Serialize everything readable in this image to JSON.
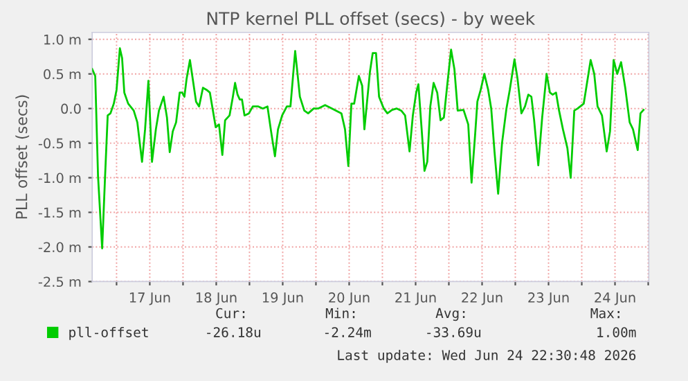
{
  "chart_data": {
    "type": "line",
    "title": "NTP kernel PLL offset (secs) - by week",
    "ylabel": "PLL offset (secs)",
    "x": [
      "2026-06-16T15:12",
      "2026-06-16T16:18",
      "2026-06-16T17:18",
      "2026-06-16T18:48",
      "2026-06-16T19:48",
      "2026-06-16T20:48",
      "2026-06-16T21:48",
      "2026-06-16T23:00",
      "2026-06-17T00:00",
      "2026-06-17T01:12",
      "2026-06-17T02:00",
      "2026-06-17T02:48",
      "2026-06-17T04:12",
      "2026-06-17T06:12",
      "2026-06-17T07:30",
      "2026-06-17T09:12",
      "2026-06-17T10:18",
      "2026-06-17T11:30",
      "2026-06-17T12:48",
      "2026-06-17T14:12",
      "2026-06-17T15:18",
      "2026-06-17T17:00",
      "2026-06-17T18:12",
      "2026-06-17T19:12",
      "2026-06-17T20:18",
      "2026-06-17T21:30",
      "2026-06-17T22:48",
      "2026-06-17T23:42",
      "2026-06-18T00:30",
      "2026-06-18T01:18",
      "2026-06-18T02:30",
      "2026-06-18T03:30",
      "2026-06-18T04:42",
      "2026-06-18T05:48",
      "2026-06-18T07:12",
      "2026-06-18T08:30",
      "2026-06-18T09:42",
      "2026-06-18T10:48",
      "2026-06-18T11:48",
      "2026-06-18T13:00",
      "2026-06-18T14:12",
      "2026-06-18T15:12",
      "2026-06-18T16:48",
      "2026-06-18T18:00",
      "2026-06-18T18:48",
      "2026-06-18T19:42",
      "2026-06-18T20:30",
      "2026-06-18T21:18",
      "2026-06-18T22:12",
      "2026-06-18T23:48",
      "2026-06-19T01:12",
      "2026-06-19T03:12",
      "2026-06-19T04:48",
      "2026-06-19T06:30",
      "2026-06-19T07:48",
      "2026-06-19T09:12",
      "2026-06-19T10:18",
      "2026-06-19T11:48",
      "2026-06-19T13:30",
      "2026-06-19T14:48",
      "2026-06-19T16:30",
      "2026-06-19T18:12",
      "2026-06-19T19:48",
      "2026-06-19T21:12",
      "2026-06-19T23:12",
      "2026-06-20T00:48",
      "2026-06-20T03:18",
      "2026-06-20T05:48",
      "2026-06-20T09:12",
      "2026-06-20T10:30",
      "2026-06-20T11:42",
      "2026-06-20T12:48",
      "2026-06-20T13:48",
      "2026-06-20T15:30",
      "2026-06-20T16:42",
      "2026-06-20T17:30",
      "2026-06-20T18:18",
      "2026-06-20T19:30",
      "2026-06-20T20:30",
      "2026-06-20T21:42",
      "2026-06-20T22:48",
      "2026-06-21T00:30",
      "2026-06-21T01:48",
      "2026-06-21T03:30",
      "2026-06-21T05:12",
      "2026-06-21T06:48",
      "2026-06-21T08:12",
      "2026-06-21T09:48",
      "2026-06-21T11:00",
      "2026-06-21T12:12",
      "2026-06-21T13:00",
      "2026-06-21T14:18",
      "2026-06-21T15:12",
      "2026-06-21T16:12",
      "2026-06-21T17:18",
      "2026-06-21T18:30",
      "2026-06-21T19:48",
      "2026-06-21T21:00",
      "2026-06-21T22:12",
      "2026-06-21T23:30",
      "2026-06-22T00:48",
      "2026-06-22T02:00",
      "2026-06-22T03:12",
      "2026-06-22T05:18",
      "2026-06-22T07:00",
      "2026-06-22T08:12",
      "2026-06-22T09:30",
      "2026-06-22T10:18",
      "2026-06-22T11:30",
      "2026-06-22T12:48",
      "2026-06-22T14:12",
      "2026-06-22T15:18",
      "2026-06-22T16:30",
      "2026-06-22T17:48",
      "2026-06-22T19:12",
      "2026-06-22T20:48",
      "2026-06-22T22:00",
      "2026-06-22T23:42",
      "2026-06-23T00:48",
      "2026-06-23T02:12",
      "2026-06-23T03:30",
      "2026-06-23T04:42",
      "2026-06-23T05:48",
      "2026-06-23T06:48",
      "2026-06-23T08:18",
      "2026-06-23T09:42",
      "2026-06-23T11:18",
      "2026-06-23T12:30",
      "2026-06-23T13:30",
      "2026-06-23T14:42",
      "2026-06-23T15:48",
      "2026-06-23T17:12",
      "2026-06-23T18:48",
      "2026-06-23T20:00",
      "2026-06-23T21:18",
      "2026-06-23T22:30",
      "2026-06-24T00:42",
      "2026-06-24T01:30",
      "2026-06-24T03:12",
      "2026-06-24T04:30",
      "2026-06-24T05:42",
      "2026-06-24T07:18",
      "2026-06-24T09:00",
      "2026-06-24T10:12",
      "2026-06-24T11:30",
      "2026-06-24T12:48",
      "2026-06-24T14:12",
      "2026-06-24T15:42",
      "2026-06-24T17:18",
      "2026-06-24T18:30",
      "2026-06-24T20:12",
      "2026-06-24T21:12",
      "2026-06-24T22:18"
    ],
    "series": [
      {
        "name": "pll-offset",
        "color": "#00cc00",
        "values": [
          0.57,
          0.47,
          -0.97,
          -2.02,
          -1.03,
          -0.1,
          -0.07,
          0.07,
          0.27,
          0.87,
          0.73,
          0.23,
          0.07,
          -0.03,
          -0.2,
          -0.77,
          -0.3,
          0.4,
          -0.77,
          -0.3,
          -0.03,
          0.17,
          -0.13,
          -0.63,
          -0.33,
          -0.2,
          0.23,
          0.23,
          0.17,
          0.43,
          0.7,
          0.43,
          0.1,
          0.03,
          0.3,
          0.27,
          0.23,
          -0.03,
          -0.27,
          -0.23,
          -0.67,
          -0.17,
          -0.1,
          0.17,
          0.37,
          0.2,
          0.13,
          0.13,
          -0.1,
          -0.07,
          0.03,
          0.03,
          0,
          0.03,
          -0.33,
          -0.69,
          -0.3,
          -0.1,
          0.03,
          0.03,
          0.83,
          0.17,
          -0.03,
          -0.07,
          0,
          0,
          0.05,
          0,
          -0.07,
          -0.3,
          -0.83,
          0.07,
          0.07,
          0.47,
          0.33,
          -0.3,
          0.03,
          0.53,
          0.8,
          0.8,
          0.17,
          0,
          -0.07,
          -0.02,
          0,
          -0.03,
          -0.1,
          -0.62,
          -0.1,
          0.23,
          0.35,
          -0.37,
          -0.9,
          -0.77,
          0.03,
          0.37,
          0.23,
          -0.17,
          -0.13,
          0.37,
          0.85,
          0.57,
          -0.03,
          -0.02,
          -0.23,
          -1.07,
          -0.37,
          0.1,
          0.27,
          0.5,
          0.27,
          0,
          -0.63,
          -1.23,
          -0.5,
          0,
          0.27,
          0.71,
          0.43,
          -0.07,
          0.03,
          0.2,
          0.17,
          -0.17,
          -0.82,
          -0.13,
          0.5,
          0.23,
          0.2,
          0.23,
          -0.03,
          -0.3,
          -0.57,
          -1.0,
          -0.03,
          0,
          0.07,
          0.27,
          0.7,
          0.5,
          0.03,
          -0.1,
          -0.62,
          -0.33,
          0.7,
          0.5,
          0.67,
          0.3,
          -0.2,
          -0.3,
          -0.6,
          -0.07,
          -0.02
        ]
      }
    ],
    "xlim": [
      "2026-06-16T15:12",
      "2026-06-25T00:12"
    ],
    "xticks": [
      {
        "value": "2026-06-17T00:00",
        "label": null
      },
      {
        "value": "2026-06-17T12:00",
        "label": "17 Jun"
      },
      {
        "value": "2026-06-18T00:00",
        "label": null
      },
      {
        "value": "2026-06-18T12:00",
        "label": "18 Jun"
      },
      {
        "value": "2026-06-19T00:00",
        "label": null
      },
      {
        "value": "2026-06-19T12:00",
        "label": "19 Jun"
      },
      {
        "value": "2026-06-20T00:00",
        "label": null
      },
      {
        "value": "2026-06-20T12:00",
        "label": "20 Jun"
      },
      {
        "value": "2026-06-21T00:00",
        "label": null
      },
      {
        "value": "2026-06-21T12:00",
        "label": "21 Jun"
      },
      {
        "value": "2026-06-22T00:00",
        "label": null
      },
      {
        "value": "2026-06-22T12:00",
        "label": "22 Jun"
      },
      {
        "value": "2026-06-23T00:00",
        "label": null
      },
      {
        "value": "2026-06-23T12:00",
        "label": "23 Jun"
      },
      {
        "value": "2026-06-24T00:00",
        "label": null
      },
      {
        "value": "2026-06-24T12:00",
        "label": "24 Jun"
      },
      {
        "value": "2026-06-25T00:00",
        "label": null
      }
    ],
    "ylim": [
      -2.5,
      1.1
    ],
    "yticks": [
      {
        "value": -2.5,
        "label": "-2.5 m"
      },
      {
        "value": -2.0,
        "label": "-2.0 m"
      },
      {
        "value": -1.5,
        "label": "-1.5 m"
      },
      {
        "value": -1.0,
        "label": "-1.0 m"
      },
      {
        "value": -0.5,
        "label": "-0.5 m"
      },
      {
        "value": 0.0,
        "label": "0.0"
      },
      {
        "value": 0.5,
        "label": "0.5 m"
      },
      {
        "value": 1.0,
        "label": "1.0 m"
      }
    ],
    "grid": true,
    "legend": "bottom left",
    "marker": "none",
    "line_style": "solid",
    "annotations": [
      "Cur:",
      "Min:",
      "Avg:",
      "Max:",
      "-26.18u",
      "-2.24m",
      "-33.69u",
      "1.00m",
      "Last update: Wed Jun 24 22:30:48 2026"
    ]
  }
}
